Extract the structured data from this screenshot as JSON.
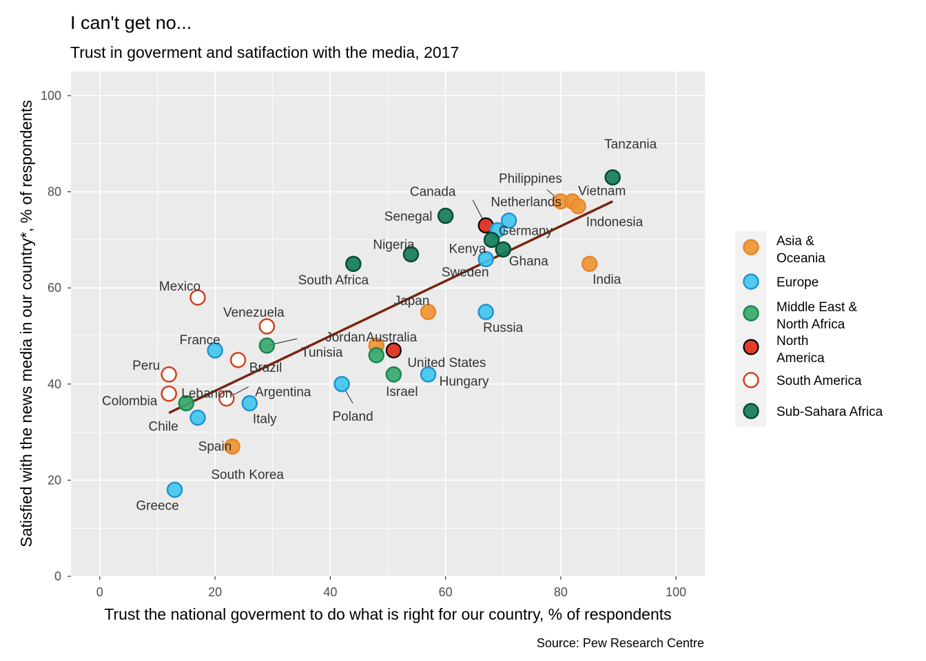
{
  "chart_data": {
    "type": "scatter",
    "title": "I can't get no...",
    "subtitle": "Trust in goverment and satifaction with the media, 2017",
    "xlabel": "Trust the national goverment to do what is right for our country, % of respondents",
    "ylabel": "Satisfied with the news media in our country*, % of respondents",
    "caption": "Source: Pew Research Centre",
    "xlim": [
      -5,
      105
    ],
    "ylim": [
      0,
      105
    ],
    "x_ticks": [
      0,
      20,
      40,
      60,
      80,
      100
    ],
    "y_ticks": [
      0,
      20,
      40,
      60,
      80,
      100
    ],
    "grid": true,
    "legend_position": "right",
    "colors": {
      "panel_bg": "#ebebeb",
      "grid": "#ffffff",
      "trend_line": "#7a2410",
      "Asia & Oceania": "#f0922f",
      "Europe": "#3ec6ee",
      "Middle East & North Africa": "#34a86a",
      "North America": "#e2321c",
      "South America": "#ffffff",
      "Sub-Sahara Africa": "#0f7a55"
    },
    "trend_line": {
      "x": [
        12,
        89
      ],
      "y": [
        34,
        78
      ]
    },
    "legend": [
      {
        "region": "Asia & Oceania",
        "label_lines": [
          "Asia &",
          "Oceania"
        ]
      },
      {
        "region": "Europe",
        "label_lines": [
          "Europe"
        ]
      },
      {
        "region": "Middle East & North Africa",
        "label_lines": [
          "Middle East &",
          "North Africa"
        ]
      },
      {
        "region": "North America",
        "label_lines": [
          "North",
          "America"
        ]
      },
      {
        "region": "South America",
        "label_lines": [
          "South America"
        ]
      },
      {
        "region": "Sub-Sahara Africa",
        "label_lines": [
          "Sub-Sahara Africa"
        ]
      }
    ],
    "points": [
      {
        "country": "Tanzania",
        "region": "Sub-Sahara Africa",
        "x": 89,
        "y": 83
      },
      {
        "country": "Philippines",
        "region": "Asia & Oceania",
        "x": 80,
        "y": 78
      },
      {
        "country": "Vietnam",
        "region": "Asia & Oceania",
        "x": 82,
        "y": 78
      },
      {
        "country": "Indonesia",
        "region": "Asia & Oceania",
        "x": 83,
        "y": 77
      },
      {
        "country": "India",
        "region": "Asia & Oceania",
        "x": 85,
        "y": 65
      },
      {
        "country": "Canada",
        "region": "North America",
        "x": 67,
        "y": 73
      },
      {
        "country": "Netherlands",
        "region": "Europe",
        "x": 71,
        "y": 74
      },
      {
        "country": "Germany",
        "region": "Europe",
        "x": 69,
        "y": 72
      },
      {
        "country": "Kenya",
        "region": "Sub-Sahara Africa",
        "x": 68,
        "y": 70
      },
      {
        "country": "Ghana",
        "region": "Sub-Sahara Africa",
        "x": 70,
        "y": 68
      },
      {
        "country": "Sweden",
        "region": "Europe",
        "x": 67,
        "y": 66
      },
      {
        "country": "Senegal",
        "region": "Sub-Sahara Africa",
        "x": 60,
        "y": 75
      },
      {
        "country": "Nigeria",
        "region": "Sub-Sahara Africa",
        "x": 54,
        "y": 67
      },
      {
        "country": "South Africa",
        "region": "Sub-Sahara Africa",
        "x": 44,
        "y": 65
      },
      {
        "country": "Russia",
        "region": "Europe",
        "x": 67,
        "y": 55
      },
      {
        "country": "Japan",
        "region": "Asia & Oceania",
        "x": 57,
        "y": 55
      },
      {
        "country": "Australia",
        "region": "Asia & Oceania",
        "x": 48,
        "y": 48
      },
      {
        "country": "United States",
        "region": "North America",
        "x": 51,
        "y": 47
      },
      {
        "country": "Israel",
        "region": "Middle East & North Africa",
        "x": 51,
        "y": 42
      },
      {
        "country": "Jordan",
        "region": "Middle East & North Africa",
        "x": 48,
        "y": 46
      },
      {
        "country": "Hungary",
        "region": "Europe",
        "x": 57,
        "y": 42
      },
      {
        "country": "Poland",
        "region": "Europe",
        "x": 42,
        "y": 40
      },
      {
        "country": "Mexico",
        "region": "South America",
        "x": 17,
        "y": 58
      },
      {
        "country": "Venezuela",
        "region": "South America",
        "x": 29,
        "y": 52
      },
      {
        "country": "Tunisia",
        "region": "Middle East & North Africa",
        "x": 29,
        "y": 48
      },
      {
        "country": "Brazil",
        "region": "South America",
        "x": 24,
        "y": 45
      },
      {
        "country": "France",
        "region": "Europe",
        "x": 20,
        "y": 47
      },
      {
        "country": "Peru",
        "region": "South America",
        "x": 12,
        "y": 42
      },
      {
        "country": "Colombia",
        "region": "South America",
        "x": 12,
        "y": 38
      },
      {
        "country": "Lebanon",
        "region": "Middle East & North Africa",
        "x": 15,
        "y": 36
      },
      {
        "country": "Argentina",
        "region": "South America",
        "x": 22,
        "y": 37
      },
      {
        "country": "Italy",
        "region": "Europe",
        "x": 26,
        "y": 36
      },
      {
        "country": "Chile",
        "region": "South America",
        "x": 12,
        "y": 38
      },
      {
        "country": "Spain",
        "region": "Europe",
        "x": 17,
        "y": 33
      },
      {
        "country": "South Korea",
        "region": "Asia & Oceania",
        "x": 23,
        "y": 27
      },
      {
        "country": "Greece",
        "region": "Europe",
        "x": 13,
        "y": 18
      }
    ]
  }
}
